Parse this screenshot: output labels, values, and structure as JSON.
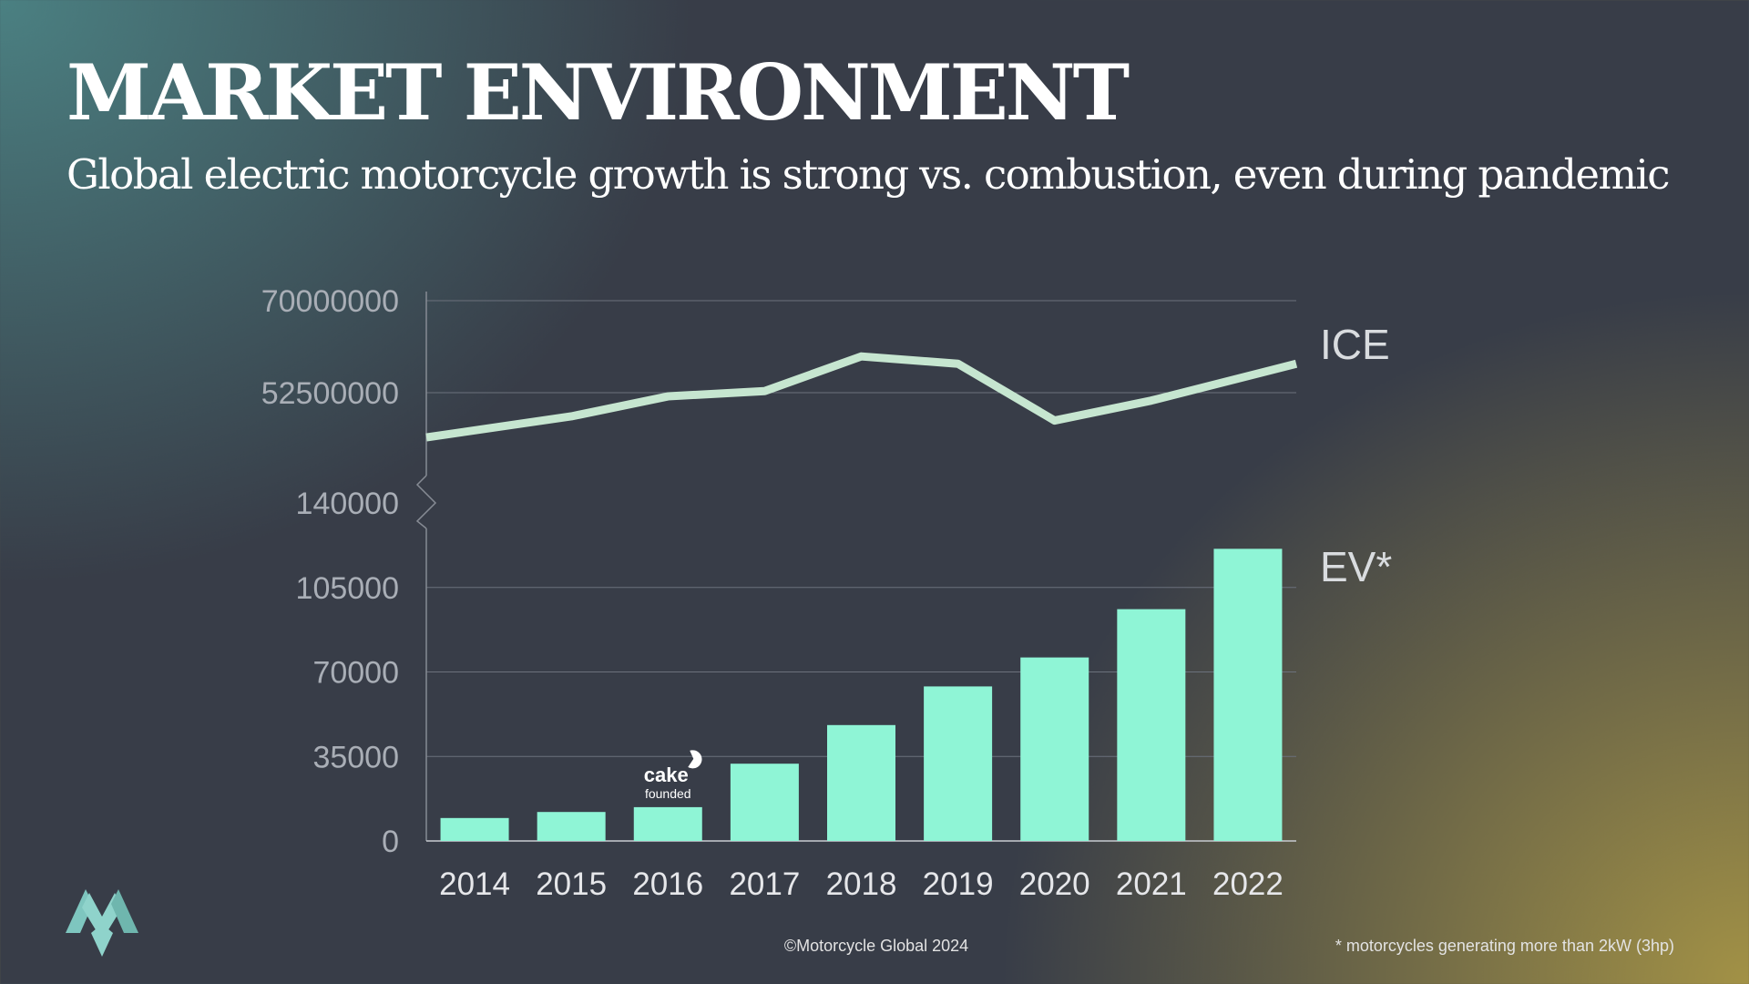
{
  "slide": {
    "title": "MARKET ENVIRONMENT",
    "subtitle": "Global electric motorcycle growth is strong vs. combustion, even during pandemic",
    "copyright": "©Motorcycle Global 2024",
    "footnote": "* motorcycles generating more than 2kW (3hp)",
    "logo_icon": "motorcycle-global-logo-icon"
  },
  "chart_data": [
    {
      "type": "line",
      "series": [
        {
          "name": "ICE",
          "values": [
            44000000,
            48000000,
            51800000,
            52800000,
            59400000,
            58000000,
            47200000,
            51000000,
            58000000
          ]
        }
      ],
      "categories": [
        "2014",
        "2015",
        "2016",
        "2017",
        "2018",
        "2019",
        "2020",
        "2021",
        "2022"
      ],
      "y_ticks": [
        "70000000",
        "52500000"
      ],
      "ylim": [
        35000000,
        70000000
      ],
      "grid": true,
      "color": "#c6e6d0"
    },
    {
      "type": "bar",
      "series": [
        {
          "name": "EV*",
          "values": [
            9500,
            12000,
            14000,
            32000,
            48000,
            64000,
            76000,
            96000,
            121000
          ]
        }
      ],
      "categories": [
        "2014",
        "2015",
        "2016",
        "2017",
        "2018",
        "2019",
        "2020",
        "2021",
        "2022"
      ],
      "y_ticks": [
        "140000",
        "105000",
        "70000",
        "35000",
        "0"
      ],
      "ylim": [
        0,
        140000
      ],
      "grid": true,
      "color": "#8ff5d6",
      "annotation": {
        "category": "2016",
        "brand": "cake",
        "text": "founded"
      }
    }
  ]
}
